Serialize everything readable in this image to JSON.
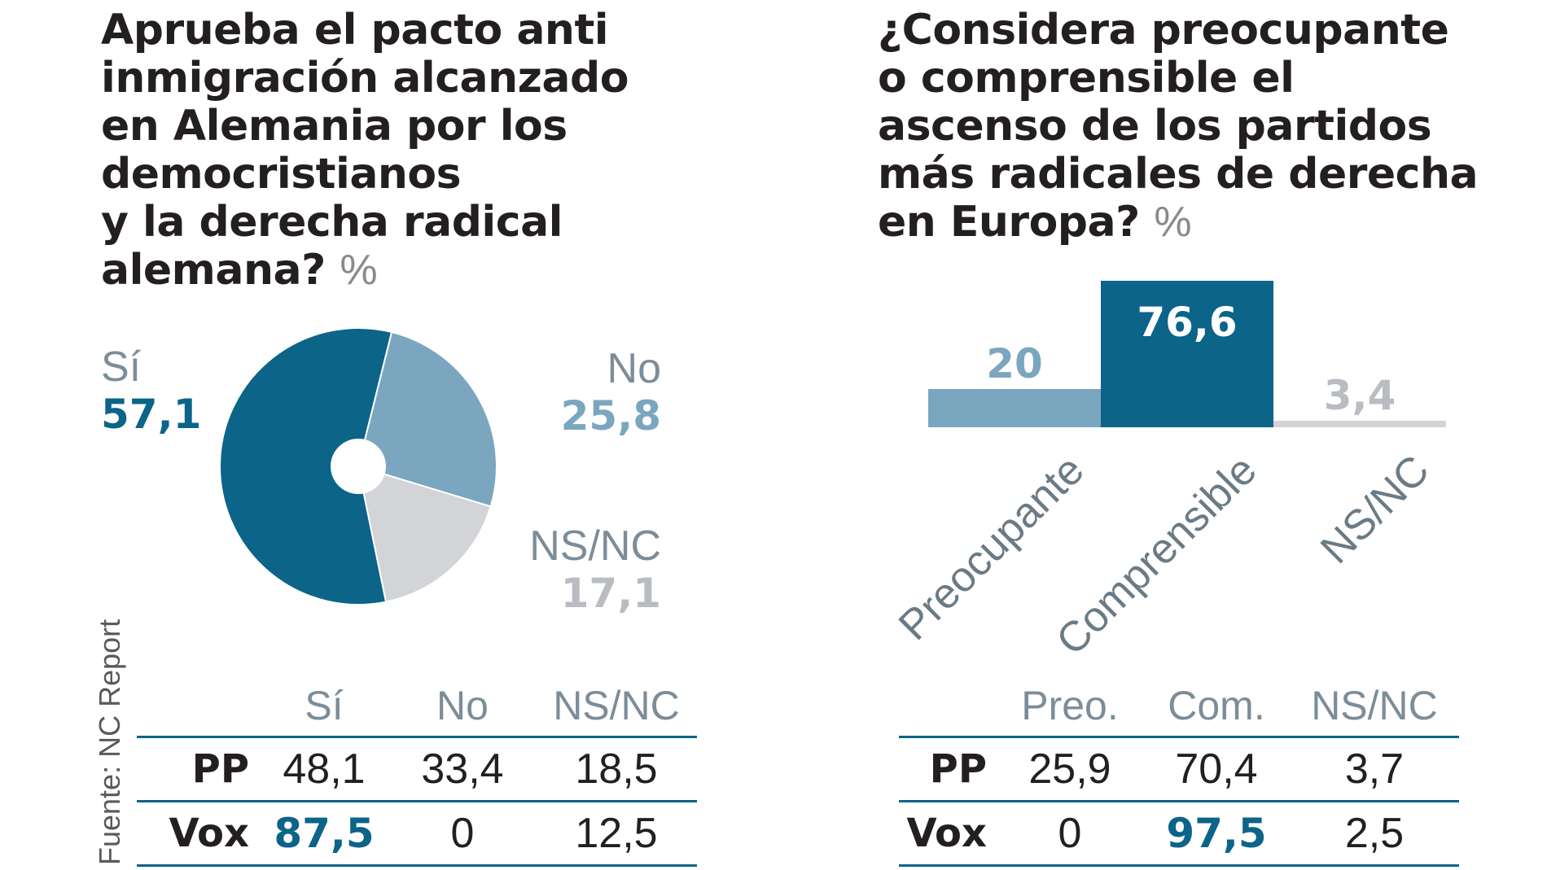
{
  "colors": {
    "dark_blue": "#0c6488",
    "light_blue": "#7ba6bf",
    "gray": "#d2d4d8",
    "text": "#231f20",
    "muted": "#7b8d99"
  },
  "left": {
    "title_lines": [
      "Aprueba el pacto anti",
      "inmigración alcanzado",
      "en Alemania por los",
      "democristianos",
      "y la derecha radical",
      "alemana?"
    ],
    "unit": "%",
    "source": "Fuente: NC Report",
    "table": {
      "headers": [
        "",
        "Sí",
        "No",
        "NS/NC"
      ],
      "rows": [
        {
          "party": "PP",
          "values": [
            "48,1",
            "33,4",
            "18,5"
          ]
        },
        {
          "party": "Vox",
          "values": [
            "87,5",
            "0",
            "12,5"
          ]
        }
      ]
    }
  },
  "right": {
    "title_lines": [
      "¿Considera preocupante",
      "o comprensible el",
      "ascenso de los partidos",
      "más radicales de derecha",
      "en Europa?"
    ],
    "unit": "%",
    "table": {
      "headers": [
        "",
        "Preo.",
        "Com.",
        "NS/NC"
      ],
      "rows": [
        {
          "party": "PP",
          "values": [
            "25,9",
            "70,4",
            "3,7"
          ]
        },
        {
          "party": "Vox",
          "values": [
            "0",
            "97,5",
            "2,5"
          ]
        }
      ]
    }
  },
  "chart_data": [
    {
      "type": "pie",
      "title": "Aprueba el pacto anti inmigración alcanzado en Alemania por los democristianos y la derecha radical alemana? %",
      "slices": [
        {
          "label": "Sí",
          "value": 57.1,
          "display": "57,1",
          "color": "#0c6488"
        },
        {
          "label": "No",
          "value": 25.8,
          "display": "25,8",
          "color": "#7ba6bf"
        },
        {
          "label": "NS/NC",
          "value": 17.1,
          "display": "17,1",
          "color": "#d2d4d8"
        }
      ]
    },
    {
      "type": "bar",
      "title": "¿Considera preocupante o comprensible el ascenso de los partidos más radicales de derecha en Europa? %",
      "categories": [
        "Preocupante",
        "Comprensible",
        "NS/NC"
      ],
      "values": [
        20,
        76.6,
        3.4
      ],
      "labels": [
        "20",
        "76,6",
        "3,4"
      ],
      "colors": [
        "#7ba6bf",
        "#0c6488",
        "#d2d4d8"
      ],
      "ylim": [
        0,
        76.6
      ]
    }
  ]
}
